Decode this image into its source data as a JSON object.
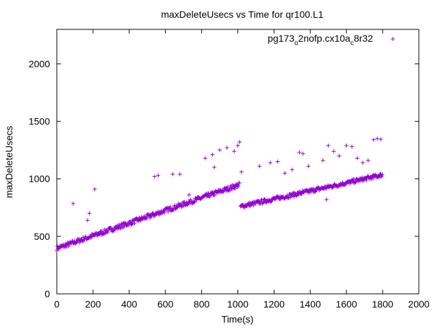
{
  "chart_data": {
    "type": "scatter",
    "title": "maxDeleteUsecs vs Time for qr100.L1",
    "xlabel": "Time(s)",
    "ylabel": "maxDeleteUsecs",
    "xlim": [
      0,
      2000
    ],
    "ylim": [
      0,
      2300
    ],
    "xticks": [
      0,
      200,
      400,
      600,
      800,
      1000,
      1200,
      1400,
      1600,
      1800,
      2000
    ],
    "yticks": [
      0,
      500,
      1000,
      1500,
      2000
    ],
    "grid": false,
    "legend_position": "top-right",
    "marker": "+",
    "series": [
      {
        "name": "pg173_o2nofp.cx10a_c8r32",
        "legend_parts": {
          "base": "pg173",
          "sub1": "o",
          "mid": "2nofp.cx10a",
          "sub2": "c",
          "tail": "8r32"
        },
        "color": "#9400d3",
        "trend_segments": [
          {
            "x_start": 0,
            "x_end": 1010,
            "y_start": 395,
            "y_end": 950,
            "spread": 40
          },
          {
            "x_start": 1015,
            "x_end": 1800,
            "y_start": 760,
            "y_end": 1035,
            "spread": 35
          }
        ],
        "outliers": [
          [
            90,
            785
          ],
          [
            170,
            640
          ],
          [
            180,
            700
          ],
          [
            210,
            910
          ],
          [
            540,
            1020
          ],
          [
            560,
            1030
          ],
          [
            640,
            1040
          ],
          [
            680,
            1040
          ],
          [
            730,
            860
          ],
          [
            820,
            1180
          ],
          [
            860,
            1210
          ],
          [
            870,
            1100
          ],
          [
            900,
            1250
          ],
          [
            940,
            1270
          ],
          [
            980,
            1240
          ],
          [
            1000,
            1290
          ],
          [
            1010,
            1320
          ],
          [
            1020,
            1060
          ],
          [
            1120,
            1110
          ],
          [
            1180,
            1140
          ],
          [
            1220,
            1150
          ],
          [
            1260,
            1050
          ],
          [
            1300,
            1080
          ],
          [
            1340,
            1230
          ],
          [
            1360,
            1220
          ],
          [
            1390,
            1110
          ],
          [
            1470,
            1160
          ],
          [
            1500,
            1290
          ],
          [
            1530,
            1240
          ],
          [
            1560,
            1200
          ],
          [
            1600,
            1290
          ],
          [
            1630,
            1280
          ],
          [
            1660,
            1180
          ],
          [
            1690,
            1140
          ],
          [
            1720,
            1160
          ],
          [
            1750,
            1340
          ],
          [
            1770,
            1350
          ],
          [
            1790,
            1345
          ],
          [
            1490,
            820
          ]
        ]
      }
    ]
  }
}
